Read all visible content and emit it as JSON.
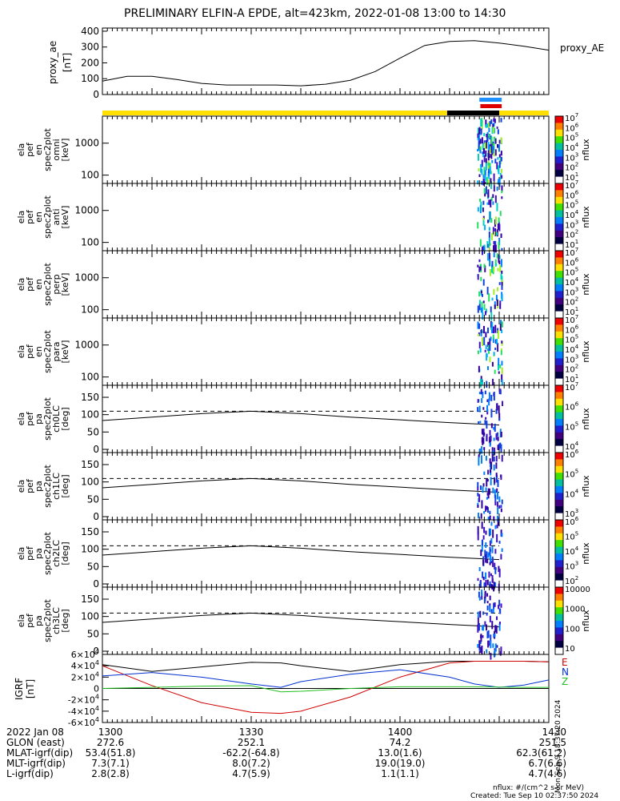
{
  "title": "PRELIMINARY ELFIN-A EPDE, alt=423km, 2022-01-08 13:00 to 14:30",
  "side_stamp": "Mon Sep 9 18:37:20 2024",
  "footer": {
    "units": "nflux: #/(cm^2 s sr MeV)",
    "created": "Created: Tue Sep 10 02:37:50 2024"
  },
  "colors": {
    "yellow_bar": "#ffe000",
    "black_bar": "#000000",
    "blue_bar": "#1e90ff",
    "red_bar": "#e00000",
    "igrf_total": "#000000",
    "igrf_east": "#d00000",
    "igrf_north": "#0030d0",
    "igrf_up": "#20c020"
  },
  "chart_data": [
    {
      "type": "line",
      "panel": "proxy_ae",
      "ylabel": "proxy_ae [nT]",
      "legend": "proxy_AE",
      "yticks": [
        0,
        100,
        200,
        300,
        400
      ],
      "ylim": [
        0,
        420
      ],
      "x_minutes": [
        0,
        5,
        10,
        15,
        20,
        25,
        30,
        35,
        40,
        45,
        50,
        55,
        60,
        65,
        70,
        75,
        80,
        85,
        90
      ],
      "values": [
        85,
        115,
        115,
        95,
        70,
        60,
        60,
        60,
        55,
        65,
        90,
        145,
        230,
        310,
        335,
        340,
        325,
        305,
        280
      ]
    },
    {
      "type": "heatmap",
      "panel": "status_bars",
      "segments": [
        {
          "color": "yellow",
          "from_min": 0,
          "to_min": 69.5
        },
        {
          "color": "black",
          "from_min": 69.5,
          "to_min": 80
        },
        {
          "color": "yellow",
          "from_min": 80,
          "to_min": 90
        }
      ],
      "blue_from_min": 76,
      "blue_to_min": 80.5,
      "red_from_min": 76.2,
      "red_to_min": 80.5
    },
    {
      "type": "heatmap",
      "panel": "energy_spectrograms",
      "ylabel_unit": "[keV]",
      "yticks": [
        100,
        1000
      ],
      "labels": [
        "ela pef en spec2plot omni [keV]",
        "ela pef en spec2plot anti [keV]",
        "ela pef en spec2plot perp [keV]",
        "ela pef en spec2plot para [keV]"
      ],
      "colorbar_label": "nflux",
      "colorbar_ticks": [
        "10^1",
        "10^2",
        "10^3",
        "10^4",
        "10^5",
        "10^6",
        "10^7"
      ],
      "active_window_min": [
        75.5,
        80.5
      ]
    },
    {
      "type": "heatmap",
      "panel": "pitch_angle_spectrograms",
      "ylabel_unit": "[deg]",
      "yticks": [
        0,
        50,
        100,
        150
      ],
      "ylim": [
        0,
        180
      ],
      "labels": [
        "ela pef pa spec2plot ch0LC [deg]",
        "ela pef pa spec2plot ch1LC [deg]",
        "ela pef pa spec2plot ch2LC [deg]",
        "ela pef pa spec2plot ch3LC [deg]"
      ],
      "colorbar_label": "nflux",
      "colorbar_ticks": [
        [
          "10^4",
          "10^5",
          "10^6",
          "10^7"
        ],
        [
          "10^3",
          "10^4",
          "10^5",
          "10^6"
        ],
        [
          "10^2",
          "10^3",
          "10^4",
          "10^5",
          "10^6"
        ],
        [
          "10",
          "100",
          "1000",
          "10000"
        ]
      ],
      "loss_cone_x_min": [
        0,
        10,
        20,
        30,
        40,
        50,
        60,
        70,
        80
      ],
      "loss_cone_deg": [
        83,
        93,
        103,
        110,
        103,
        93,
        85,
        77,
        70
      ],
      "dashed_deg": 110
    },
    {
      "type": "line",
      "panel": "IGRF",
      "ylabel": "IGRF [nT]",
      "yticks": [
        "-6×10^4",
        "-4×10^4",
        "-2×10^4",
        "0",
        "2×10^4",
        "4×10^4",
        "6×10^4"
      ],
      "ylim": [
        -60000,
        60000
      ],
      "x_minutes": [
        0,
        10,
        20,
        30,
        36,
        40,
        50,
        60,
        70,
        75,
        80,
        85,
        90
      ],
      "series": [
        {
          "name": "black",
          "values": [
            42000,
            30000,
            38000,
            46000,
            45000,
            40000,
            30000,
            42000,
            48000,
            48000,
            48000,
            48000,
            47000
          ]
        },
        {
          "name": "E",
          "values": [
            40000,
            5000,
            -25000,
            -42000,
            -44000,
            -40000,
            -15000,
            20000,
            45000,
            48000,
            48000,
            48000,
            47000
          ]
        },
        {
          "name": "N",
          "values": [
            22000,
            28000,
            20000,
            8000,
            2000,
            12000,
            25000,
            33000,
            20000,
            8000,
            2000,
            6000,
            15000
          ]
        },
        {
          "name": "Z",
          "values": [
            0,
            2000,
            4000,
            5000,
            -6000,
            -5000,
            0,
            3000,
            3000,
            3000,
            2500,
            2000,
            2000
          ]
        }
      ],
      "legend": [
        "E",
        "N",
        "Z"
      ]
    }
  ],
  "axis": {
    "labels": [
      "2022 Jan 08",
      "GLON (east)",
      "MLAT-igrf(dip)",
      "MLT-igrf(dip)",
      "L-igrf(dip)"
    ],
    "ticks": [
      {
        "time": "1300",
        "glon": "272.6",
        "mlat": "53.4(51.8)",
        "mlt": "7.3(7.1)",
        "l": "2.8(2.8)"
      },
      {
        "time": "1330",
        "glon": "252.1",
        "mlat": "-62.2(-64.8)",
        "mlt": "8.0(7.2)",
        "l": "4.7(5.9)"
      },
      {
        "time": "1400",
        "glon": "74.2",
        "mlat": "13.0(1.6)",
        "mlt": "19.0(19.0)",
        "l": "1.1(1.1)"
      },
      {
        "time": "1430",
        "glon": "251.5",
        "mlat": "62.3(61.2)",
        "mlt": "6.7(6.6)",
        "l": "4.7(4.6)"
      }
    ]
  }
}
